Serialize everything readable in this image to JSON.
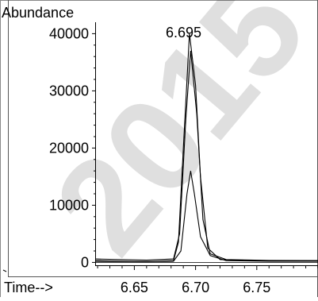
{
  "chart_data": {
    "type": "line",
    "ylabel": "Abundance",
    "xlabel": "Time-->",
    "peak_label": "6.695",
    "watermark": "2015",
    "xlim": [
      6.618,
      6.8
    ],
    "ylim": [
      -500,
      42000
    ],
    "x_ticks": [
      6.65,
      6.7,
      6.75
    ],
    "x_tick_labels": [
      "6.65",
      "6.70",
      "6.75"
    ],
    "y_ticks": [
      0,
      10000,
      20000,
      30000,
      40000
    ],
    "y_tick_labels": [
      "0",
      "10000",
      "20000",
      "30000",
      "40000"
    ],
    "grid": false,
    "baseline": 0,
    "series": [
      {
        "x": [
          6.618,
          6.66,
          6.682,
          6.686,
          6.69,
          6.695,
          6.7,
          6.704,
          6.71,
          6.72,
          6.74,
          6.8
        ],
        "values": [
          300,
          150,
          300,
          3500,
          20000,
          40000,
          31000,
          15000,
          2500,
          500,
          300,
          300
        ]
      },
      {
        "x": [
          6.618,
          6.66,
          6.682,
          6.687,
          6.692,
          6.696,
          6.701,
          6.706,
          6.712,
          6.725,
          6.76,
          6.8
        ],
        "values": [
          600,
          400,
          600,
          5000,
          25000,
          37000,
          26000,
          7500,
          1500,
          500,
          350,
          300
        ]
      },
      {
        "x": [
          6.618,
          6.66,
          6.682,
          6.688,
          6.693,
          6.696,
          6.699,
          6.704,
          6.712,
          6.725,
          6.76,
          6.8
        ],
        "values": [
          200,
          150,
          200,
          2000,
          12000,
          16000,
          12000,
          4500,
          1200,
          300,
          200,
          200
        ]
      }
    ]
  }
}
